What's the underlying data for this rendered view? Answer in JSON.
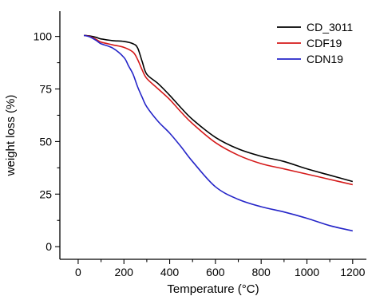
{
  "chart_data": {
    "type": "line",
    "title": "",
    "xlabel": "Temperature (°C)",
    "ylabel": "weight loss (%)",
    "xlim": [
      -80,
      1260
    ],
    "ylim": [
      -6,
      112
    ],
    "xticks": [
      0,
      200,
      400,
      600,
      800,
      1000,
      1200
    ],
    "yticks": [
      0,
      25,
      50,
      75,
      100
    ],
    "grid": false,
    "legend_position": "top-right",
    "series": [
      {
        "name": "CD_3011",
        "color": "#000000",
        "x": [
          25,
          50,
          80,
          100,
          150,
          200,
          240,
          260,
          280,
          300,
          350,
          400,
          450,
          500,
          600,
          700,
          800,
          900,
          1000,
          1100,
          1200
        ],
        "y": [
          100.5,
          100.2,
          99.5,
          98.8,
          98.0,
          97.6,
          96.5,
          94.5,
          88.0,
          82.0,
          77.5,
          72.0,
          66.0,
          60.5,
          52.0,
          46.5,
          43.0,
          40.5,
          37.0,
          34.0,
          31.0
        ]
      },
      {
        "name": "CDF19",
        "color": "#d51a1a",
        "x": [
          25,
          50,
          80,
          100,
          150,
          200,
          240,
          260,
          280,
          300,
          350,
          400,
          450,
          500,
          600,
          700,
          800,
          900,
          1000,
          1100,
          1200
        ],
        "y": [
          100.5,
          100.0,
          98.5,
          97.3,
          96.0,
          94.8,
          92.5,
          89.0,
          84.0,
          80.0,
          75.0,
          70.0,
          64.0,
          58.5,
          49.5,
          43.5,
          39.5,
          37.0,
          34.5,
          32.0,
          29.5
        ]
      },
      {
        "name": "CDN19",
        "color": "#2525c8",
        "x": [
          25,
          50,
          80,
          100,
          150,
          200,
          220,
          240,
          260,
          280,
          300,
          350,
          400,
          450,
          500,
          600,
          700,
          800,
          900,
          1000,
          1100,
          1200
        ],
        "y": [
          100.5,
          99.8,
          98.0,
          96.5,
          94.5,
          90.0,
          86.0,
          82.0,
          76.0,
          71.0,
          66.5,
          59.5,
          54.0,
          47.5,
          40.5,
          28.5,
          22.5,
          19.0,
          16.5,
          13.5,
          10.0,
          7.5
        ]
      }
    ]
  }
}
